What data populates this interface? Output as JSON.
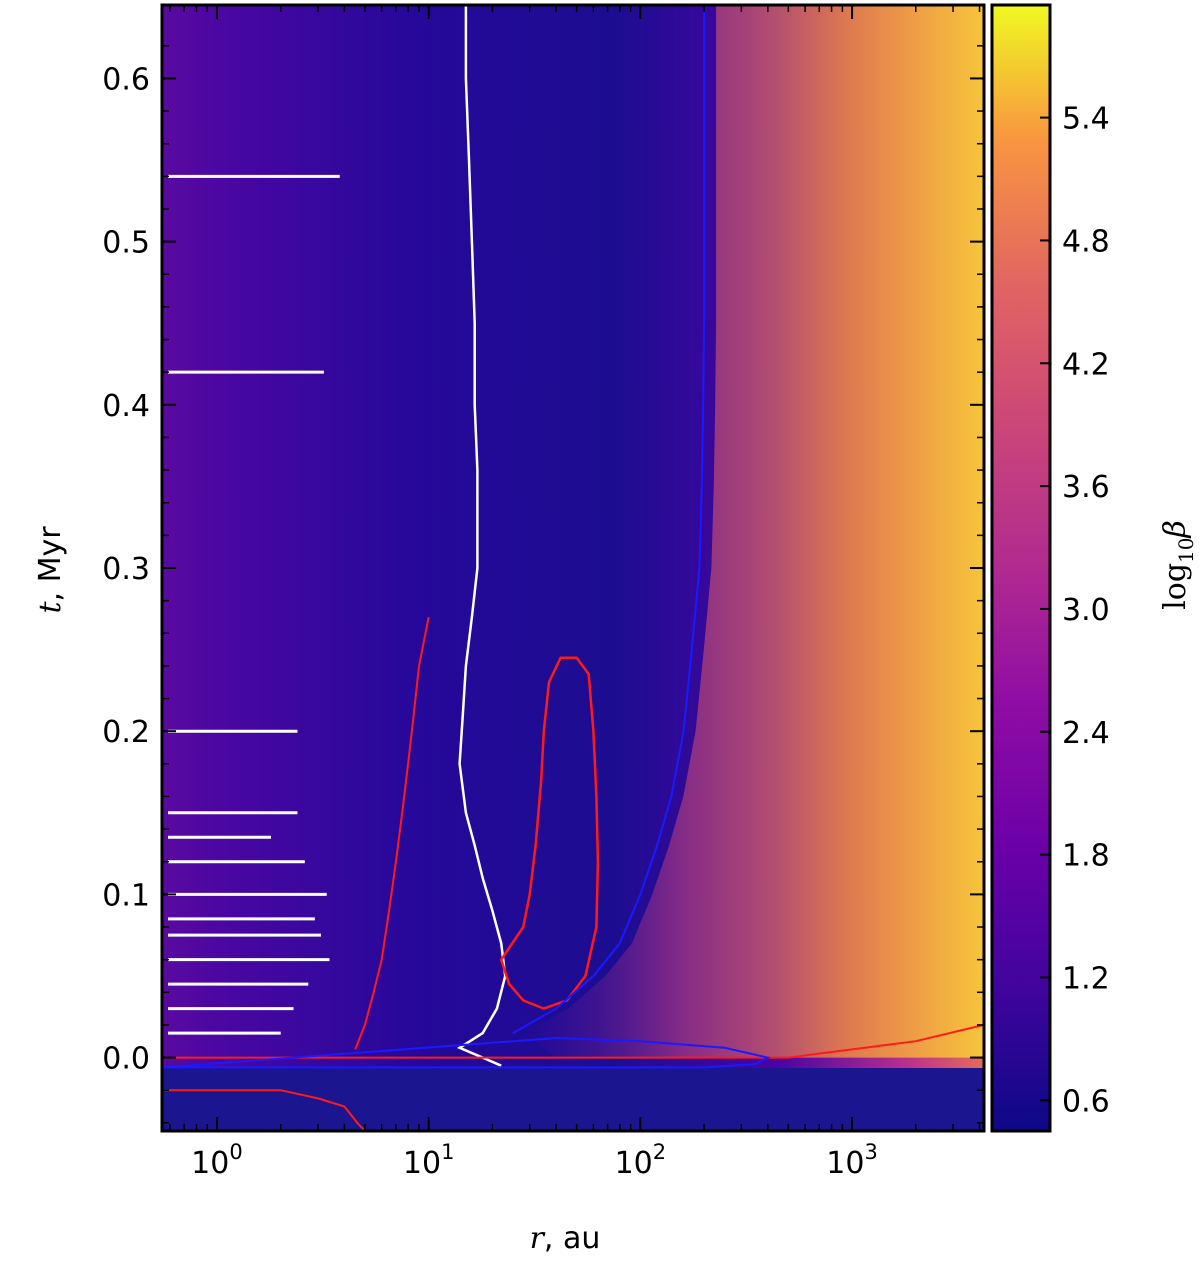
{
  "chart_data": {
    "type": "heatmap",
    "title": "",
    "xscale": "log",
    "xlim": [
      0.55,
      4200
    ],
    "ylim": [
      -0.045,
      0.645
    ],
    "x_ticks": [
      {
        "value": 1,
        "base": "10",
        "exp": "0"
      },
      {
        "value": 10,
        "base": "10",
        "exp": "1"
      },
      {
        "value": 100,
        "base": "10",
        "exp": "2"
      },
      {
        "value": 1000,
        "base": "10",
        "exp": "3"
      }
    ],
    "y_ticks": [
      {
        "value": 0.0,
        "label": "0.0"
      },
      {
        "value": 0.1,
        "label": "0.1"
      },
      {
        "value": 0.2,
        "label": "0.2"
      },
      {
        "value": 0.3,
        "label": "0.3"
      },
      {
        "value": 0.4,
        "label": "0.4"
      },
      {
        "value": 0.5,
        "label": "0.5"
      },
      {
        "value": 0.6,
        "label": "0.6"
      }
    ],
    "xlabel_symbol": "r",
    "xlabel_unit": ", au",
    "ylabel_symbol": "t",
    "ylabel_unit": ", Myr",
    "colorbar": {
      "label_prefix": "log",
      "label_sub": "10",
      "label_symbol": "β",
      "range": [
        0.45,
        5.95
      ],
      "colormap": "plasma",
      "ticks": [
        {
          "value": 0.6,
          "label": "0.6"
        },
        {
          "value": 1.2,
          "label": "1.2"
        },
        {
          "value": 1.8,
          "label": "1.8"
        },
        {
          "value": 2.4,
          "label": "2.4"
        },
        {
          "value": 3.0,
          "label": "3.0"
        },
        {
          "value": 3.6,
          "label": "3.6"
        },
        {
          "value": 4.2,
          "label": "4.2"
        },
        {
          "value": 4.8,
          "label": "4.8"
        },
        {
          "value": 5.4,
          "label": "5.4"
        }
      ]
    },
    "colors": {
      "low": "#16108a",
      "mid": "#5c03a6",
      "high": "#f0f724",
      "white_contour": "#ffffff",
      "red_contour": "#ff1a1a",
      "blue_line": "#1a1aff"
    },
    "contours": {
      "white_boundary": [
        [
          22,
          -0.005
        ],
        [
          18,
          0.0
        ],
        [
          14,
          0.006
        ],
        [
          18,
          0.015
        ],
        [
          21,
          0.03
        ],
        [
          23,
          0.05
        ],
        [
          22,
          0.07
        ],
        [
          20,
          0.09
        ],
        [
          18,
          0.11
        ],
        [
          16.5,
          0.13
        ],
        [
          15,
          0.15
        ],
        [
          14,
          0.18
        ],
        [
          14.5,
          0.21
        ],
        [
          15,
          0.24
        ],
        [
          16,
          0.27
        ],
        [
          17,
          0.3
        ],
        [
          17,
          0.33
        ],
        [
          17,
          0.36
        ],
        [
          16.5,
          0.4
        ],
        [
          16.5,
          0.45
        ],
        [
          16,
          0.5
        ],
        [
          15.5,
          0.55
        ],
        [
          15,
          0.6
        ],
        [
          15,
          0.645
        ]
      ],
      "red_inner": [
        [
          4.5,
          0.005
        ],
        [
          5,
          0.02
        ],
        [
          5.5,
          0.04
        ],
        [
          6,
          0.06
        ],
        [
          6.5,
          0.09
        ],
        [
          7,
          0.12
        ],
        [
          7.5,
          0.15
        ],
        [
          8,
          0.18
        ],
        [
          8.5,
          0.21
        ],
        [
          9,
          0.24
        ],
        [
          10,
          0.27
        ]
      ],
      "red_lobe": [
        [
          22,
          0.06
        ],
        [
          28,
          0.08
        ],
        [
          30,
          0.1
        ],
        [
          32,
          0.13
        ],
        [
          34,
          0.17
        ],
        [
          35,
          0.2
        ],
        [
          37,
          0.23
        ],
        [
          42,
          0.245
        ],
        [
          50,
          0.245
        ],
        [
          57,
          0.235
        ],
        [
          60,
          0.2
        ],
        [
          62,
          0.16
        ],
        [
          63,
          0.12
        ],
        [
          62,
          0.08
        ],
        [
          55,
          0.05
        ],
        [
          45,
          0.035
        ],
        [
          35,
          0.03
        ],
        [
          28,
          0.035
        ],
        [
          24,
          0.045
        ]
      ],
      "blue_boundary": [
        [
          25,
          0.015
        ],
        [
          40,
          0.03
        ],
        [
          60,
          0.05
        ],
        [
          80,
          0.07
        ],
        [
          100,
          0.1
        ],
        [
          120,
          0.13
        ],
        [
          140,
          0.16
        ],
        [
          160,
          0.2
        ],
        [
          175,
          0.25
        ],
        [
          190,
          0.3
        ],
        [
          195,
          0.35
        ],
        [
          198,
          0.4
        ],
        [
          200,
          0.45
        ],
        [
          200,
          0.5
        ],
        [
          200,
          0.55
        ],
        [
          200,
          0.6
        ],
        [
          200,
          0.645
        ]
      ],
      "red_infall": [
        [
          0.55,
          -0.02
        ],
        [
          2,
          -0.02
        ],
        [
          3,
          -0.025
        ],
        [
          4,
          -0.03
        ],
        [
          4.6,
          -0.04
        ],
        [
          5,
          -0.045
        ]
      ],
      "red_line_zero": [
        [
          0.55,
          0.0
        ],
        [
          500,
          0.0
        ],
        [
          1000,
          0.005
        ],
        [
          2000,
          0.01
        ],
        [
          4200,
          0.02
        ]
      ],
      "blue_line_zero": [
        [
          0.55,
          -0.006
        ],
        [
          200,
          -0.006
        ],
        [
          350,
          -0.004
        ],
        [
          400,
          0.0
        ],
        [
          250,
          0.006
        ],
        [
          100,
          0.01
        ],
        [
          40,
          0.012
        ]
      ]
    }
  }
}
